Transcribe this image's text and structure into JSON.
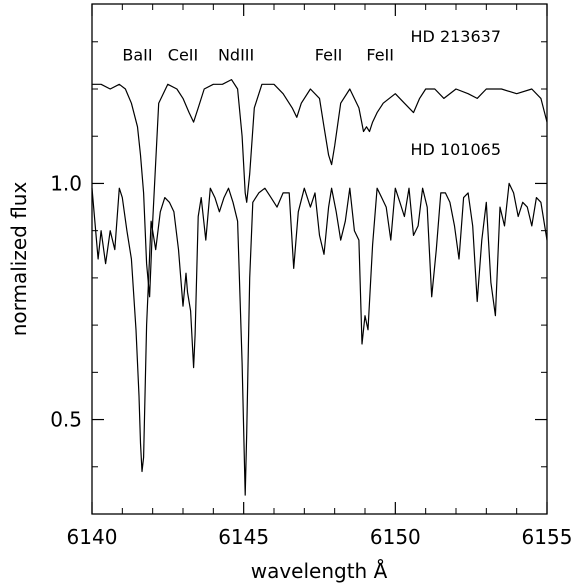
{
  "chart_data": {
    "type": "line",
    "xlabel": "wavelength Å",
    "ylabel": "normalized flux",
    "xlim": [
      6140,
      6155
    ],
    "ylim": [
      0.3,
      1.38
    ],
    "xticks": [
      {
        "value": 6140,
        "label": "6140"
      },
      {
        "value": 6145,
        "label": "6145"
      },
      {
        "value": 6150,
        "label": "6150"
      },
      {
        "value": 6155,
        "label": "6155"
      }
    ],
    "yticks": [
      {
        "value": 0.5,
        "label": "0.5"
      },
      {
        "value": 1.0,
        "label": "1.0"
      }
    ],
    "annotations": [
      {
        "text": "BaII",
        "x": 6141.5,
        "y": 1.26
      },
      {
        "text": "CeII",
        "x": 6143.0,
        "y": 1.26
      },
      {
        "text": "NdIII",
        "x": 6144.75,
        "y": 1.26
      },
      {
        "text": "FeII",
        "x": 6147.8,
        "y": 1.26
      },
      {
        "text": "FeII",
        "x": 6149.5,
        "y": 1.26
      }
    ],
    "series": [
      {
        "name": "HD 213637",
        "label_pos": [
          6150.5,
          1.3
        ],
        "x": [
          6140.0,
          6140.3,
          6140.6,
          6140.9,
          6141.1,
          6141.3,
          6141.5,
          6141.6,
          6141.7,
          6141.8,
          6141.9,
          6142.0,
          6142.2,
          6142.5,
          6142.8,
          6143.0,
          6143.2,
          6143.35,
          6143.5,
          6143.7,
          6144.0,
          6144.3,
          6144.6,
          6144.8,
          6144.95,
          6145.05,
          6145.1,
          6145.2,
          6145.35,
          6145.6,
          6146.0,
          6146.3,
          6146.6,
          6146.75,
          6146.9,
          6147.2,
          6147.5,
          6147.65,
          6147.8,
          6147.9,
          6148.0,
          6148.2,
          6148.5,
          6148.8,
          6148.95,
          6149.05,
          6149.15,
          6149.25,
          6149.4,
          6149.6,
          6150.0,
          6150.3,
          6150.6,
          6150.8,
          6151.0,
          6151.3,
          6151.6,
          6152.0,
          6152.4,
          6152.7,
          6153.0,
          6153.5,
          6154.0,
          6154.5,
          6154.8,
          6155.0
        ],
        "y": [
          1.21,
          1.21,
          1.2,
          1.21,
          1.2,
          1.17,
          1.12,
          1.06,
          0.98,
          0.83,
          0.76,
          0.92,
          1.17,
          1.21,
          1.2,
          1.18,
          1.15,
          1.13,
          1.16,
          1.2,
          1.21,
          1.21,
          1.22,
          1.2,
          1.1,
          0.98,
          0.96,
          1.02,
          1.16,
          1.21,
          1.21,
          1.19,
          1.16,
          1.14,
          1.17,
          1.2,
          1.18,
          1.12,
          1.06,
          1.04,
          1.08,
          1.17,
          1.2,
          1.16,
          1.11,
          1.12,
          1.11,
          1.13,
          1.15,
          1.17,
          1.19,
          1.17,
          1.15,
          1.18,
          1.2,
          1.2,
          1.18,
          1.2,
          1.19,
          1.18,
          1.2,
          1.2,
          1.19,
          1.2,
          1.18,
          1.13
        ]
      },
      {
        "name": "HD 101065",
        "label_pos": [
          6150.5,
          1.06
        ],
        "x": [
          6140.0,
          6140.2,
          6140.3,
          6140.45,
          6140.6,
          6140.75,
          6140.9,
          6141.0,
          6141.15,
          6141.3,
          6141.45,
          6141.55,
          6141.6,
          6141.65,
          6141.7,
          6141.8,
          6141.95,
          6142.1,
          6142.25,
          6142.4,
          6142.55,
          6142.7,
          6142.85,
          6143.0,
          6143.1,
          6143.15,
          6143.25,
          6143.35,
          6143.4,
          6143.5,
          6143.6,
          6143.75,
          6143.9,
          6144.05,
          6144.2,
          6144.35,
          6144.5,
          6144.65,
          6144.8,
          6144.95,
          6145.05,
          6145.1,
          6145.2,
          6145.3,
          6145.5,
          6145.7,
          6145.9,
          6146.1,
          6146.3,
          6146.5,
          6146.65,
          6146.8,
          6147.0,
          6147.2,
          6147.35,
          6147.5,
          6147.65,
          6147.8,
          6147.9,
          6148.05,
          6148.2,
          6148.35,
          6148.5,
          6148.65,
          6148.8,
          6148.9,
          6149.0,
          6149.1,
          6149.25,
          6149.4,
          6149.55,
          6149.7,
          6149.85,
          6150.0,
          6150.15,
          6150.3,
          6150.45,
          6150.6,
          6150.75,
          6150.9,
          6151.05,
          6151.2,
          6151.35,
          6151.5,
          6151.65,
          6151.8,
          6151.95,
          6152.1,
          6152.25,
          6152.4,
          6152.55,
          6152.7,
          6152.85,
          6153.0,
          6153.15,
          6153.3,
          6153.45,
          6153.6,
          6153.75,
          6153.9,
          6154.05,
          6154.2,
          6154.35,
          6154.5,
          6154.65,
          6154.8,
          6155.0
        ],
        "y": [
          0.99,
          0.84,
          0.9,
          0.83,
          0.9,
          0.86,
          0.99,
          0.97,
          0.9,
          0.84,
          0.69,
          0.55,
          0.45,
          0.39,
          0.42,
          0.7,
          0.92,
          0.86,
          0.94,
          0.97,
          0.96,
          0.94,
          0.86,
          0.74,
          0.81,
          0.77,
          0.73,
          0.61,
          0.68,
          0.93,
          0.97,
          0.88,
          0.99,
          0.97,
          0.94,
          0.97,
          0.99,
          0.96,
          0.92,
          0.62,
          0.34,
          0.47,
          0.8,
          0.96,
          0.98,
          0.99,
          0.97,
          0.95,
          0.98,
          0.98,
          0.82,
          0.94,
          0.99,
          0.95,
          0.98,
          0.89,
          0.85,
          0.95,
          0.99,
          0.94,
          0.88,
          0.92,
          0.99,
          0.9,
          0.88,
          0.66,
          0.72,
          0.69,
          0.87,
          0.99,
          0.97,
          0.95,
          0.88,
          0.99,
          0.96,
          0.93,
          0.99,
          0.89,
          0.91,
          0.99,
          0.95,
          0.76,
          0.86,
          0.98,
          0.98,
          0.96,
          0.91,
          0.84,
          0.97,
          0.98,
          0.91,
          0.75,
          0.88,
          0.96,
          0.79,
          0.72,
          0.95,
          0.91,
          1.0,
          0.98,
          0.93,
          0.96,
          0.95,
          0.91,
          0.97,
          0.96,
          0.88
        ]
      }
    ],
    "grid": false,
    "legend": "none"
  }
}
